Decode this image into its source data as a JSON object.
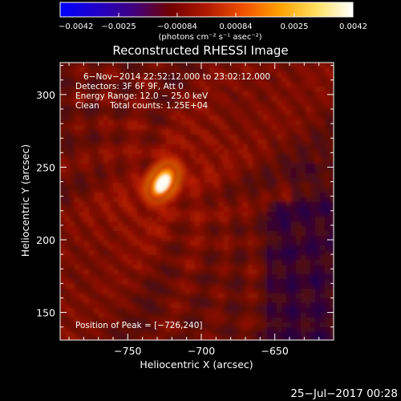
{
  "chart_data": {
    "type": "heatmap",
    "title": "Reconstructed RHESSI Image",
    "xlabel": "Heliocentric X (arcsec)",
    "ylabel": "Heliocentric Y (arcsec)",
    "xlim": [
      -796,
      -610
    ],
    "ylim": [
      131,
      322
    ],
    "x_ticks": [
      -750,
      -700,
      -650
    ],
    "x_tick_labels": [
      "−750",
      "−700",
      "−650"
    ],
    "y_ticks": [
      150,
      200,
      250,
      300
    ],
    "y_tick_labels": [
      "150",
      "200",
      "250",
      "300"
    ],
    "colorbar": {
      "min": -0.0042,
      "max": 0.0042,
      "tick_labels": [
        "−0.0042",
        "−0.0025",
        "−0.00084",
        "0.00084",
        "0.0025",
        "0.0042"
      ],
      "unit_label": "(photons cm⁻² s⁻¹ asec⁻²)",
      "colormap_stops": [
        "#0000ff",
        "#2000c8",
        "#400080",
        "#700000",
        "#b01800",
        "#f05000",
        "#ffa000",
        "#ffe060",
        "#ffffff"
      ]
    },
    "annotations": [
      "6−Nov−2014 22:52:12.000 to 23:02:12.000",
      "Detectors: 3F 6F 9F, Att 0",
      "Energy Range: 12.0 − 25.0 keV",
      "Clean    Total counts: 1.25E+04",
      "Position of Peak = [−726,240]"
    ],
    "peak": {
      "x": -726,
      "y": 240
    },
    "timestamp": "25−Jul−2017 00:28"
  }
}
